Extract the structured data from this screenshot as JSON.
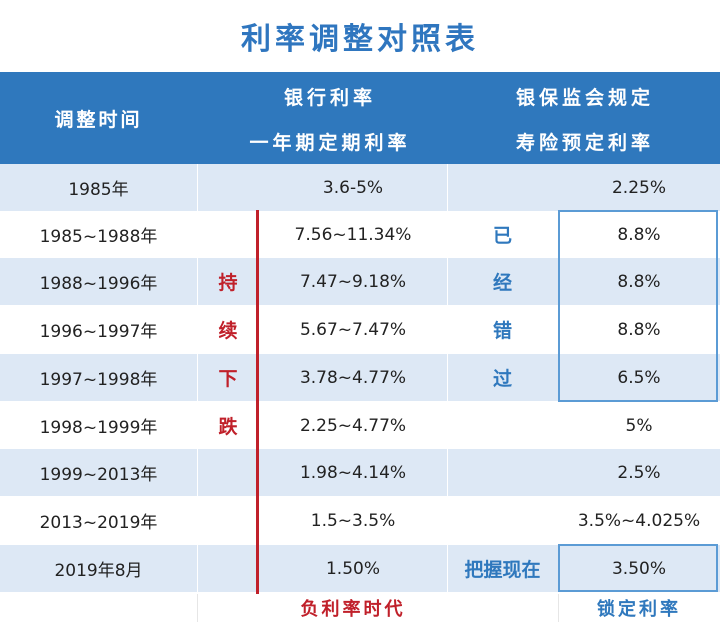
{
  "title": "利率调整对照表",
  "header": {
    "time": "调整时间",
    "bank_line1": "银行利率",
    "bank_line2": "一年期定期利率",
    "ins_line1": "银保监会规定",
    "ins_line2": "寿险预定利率"
  },
  "rows": [
    {
      "time": "1985年",
      "trend": "",
      "bank": "3.6-5%",
      "note": "",
      "ins": "2.25%"
    },
    {
      "time": "1985~1988年",
      "trend": "",
      "bank": "7.56~11.34%",
      "note": "已",
      "ins": "8.8%"
    },
    {
      "time": "1988~1996年",
      "trend": "持",
      "bank": "7.47~9.18%",
      "note": "经",
      "ins": "8.8%"
    },
    {
      "time": "1996~1997年",
      "trend": "续",
      "bank": "5.67~7.47%",
      "note": "错",
      "ins": "8.8%"
    },
    {
      "time": "1997~1998年",
      "trend": "下",
      "bank": "3.78~4.77%",
      "note": "过",
      "ins": "6.5%"
    },
    {
      "time": "1998~1999年",
      "trend": "跌",
      "bank": "2.25~4.77%",
      "note": "",
      "ins": "5%"
    },
    {
      "time": "1999~2013年",
      "trend": "",
      "bank": "1.98~4.14%",
      "note": "",
      "ins": "2.5%"
    },
    {
      "time": "2013~2019年",
      "trend": "",
      "bank": "1.5~3.5%",
      "note": "",
      "ins": "3.5%~4.025%"
    },
    {
      "time": "2019年8月",
      "trend": "",
      "bank": "1.50%",
      "note": "把握现在",
      "ins": "3.50%"
    }
  ],
  "footer": {
    "negative": "负利率时代",
    "lock": "锁定利率"
  },
  "colors": {
    "header_bg": "#2f78bd",
    "shade_row": "#dde8f5",
    "red_accent": "#c0202a",
    "blue_accent": "#2f78bd"
  }
}
